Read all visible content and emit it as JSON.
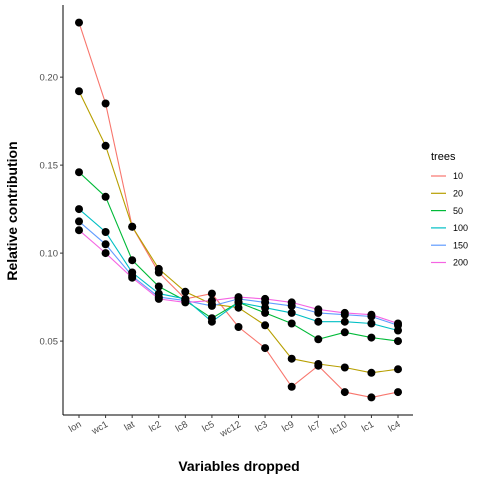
{
  "chart_data": {
    "type": "line",
    "xlabel": "Variables dropped",
    "ylabel": "Relative contribution",
    "categories": [
      "lon",
      "wc1",
      "lat",
      "lc2",
      "lc8",
      "lc5",
      "wc12",
      "lc3",
      "lc9",
      "lc7",
      "lc10",
      "lc1",
      "lc4"
    ],
    "yticks": [
      0.05,
      0.1,
      0.15,
      0.2
    ],
    "yticklabels": [
      "0.05",
      "0.10",
      "0.15",
      "0.20"
    ],
    "ylim": [
      0.008,
      0.241
    ],
    "grid": false,
    "legend": {
      "title": "trees",
      "position": "right"
    },
    "series": [
      {
        "name": "10",
        "color": "#F8766D",
        "values": [
          0.231,
          0.185,
          0.115,
          0.089,
          0.074,
          0.077,
          0.058,
          0.046,
          0.024,
          0.036,
          0.021,
          0.018,
          0.021
        ]
      },
      {
        "name": "20",
        "color": "#B79F00",
        "values": [
          0.192,
          0.161,
          0.115,
          0.091,
          0.078,
          0.071,
          0.069,
          0.059,
          0.04,
          0.037,
          0.035,
          0.032,
          0.034
        ]
      },
      {
        "name": "50",
        "color": "#00BA38",
        "values": [
          0.146,
          0.132,
          0.096,
          0.081,
          0.073,
          0.063,
          0.072,
          0.066,
          0.06,
          0.051,
          0.055,
          0.052,
          0.05
        ]
      },
      {
        "name": "100",
        "color": "#00BFC4",
        "values": [
          0.125,
          0.112,
          0.089,
          0.077,
          0.074,
          0.061,
          0.072,
          0.069,
          0.066,
          0.061,
          0.061,
          0.06,
          0.056
        ]
      },
      {
        "name": "150",
        "color": "#619CFF",
        "values": [
          0.118,
          0.105,
          0.087,
          0.075,
          0.073,
          0.07,
          0.074,
          0.072,
          0.07,
          0.066,
          0.065,
          0.064,
          0.059
        ]
      },
      {
        "name": "200",
        "color": "#F564E3",
        "values": [
          0.113,
          0.1,
          0.086,
          0.074,
          0.072,
          0.073,
          0.075,
          0.074,
          0.072,
          0.068,
          0.066,
          0.065,
          0.06
        ]
      }
    ]
  }
}
